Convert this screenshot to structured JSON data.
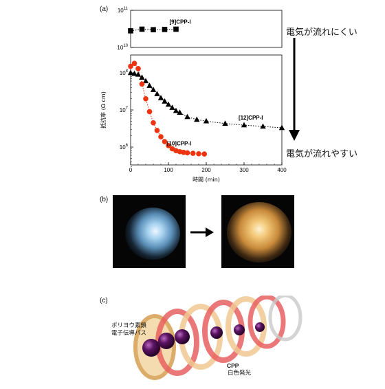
{
  "panels": {
    "a": "(a)",
    "b": "(b)",
    "c": "(c)"
  },
  "notes": {
    "top": "電気が流れにくい",
    "bottom": "電気が流れやすい"
  },
  "labels_c": {
    "path_line1": "ポリヨウ素鎖",
    "path_line2": "電子伝導パス",
    "cpp_title": "CPP",
    "cpp_sub": "白色発光"
  },
  "colors": {
    "red_series": "#ee3311",
    "black_series": "#000000"
  },
  "icons": {
    "down_arrow": "down-arrow-icon",
    "right_arrow": "right-arrow-icon"
  },
  "chart_data": {
    "type": "scatter",
    "xlabel": "時間 (min)",
    "ylabel": "抵抗率 (Ω cm)",
    "xlim": [
      0,
      400
    ],
    "ylim": [
      300000,
      150000000000
    ],
    "log_y": true,
    "broken_y_axis": true,
    "x_ticks": [
      "0",
      "100",
      "200",
      "300",
      "400"
    ],
    "y_ticks_upper": [
      "10^11",
      "10^10"
    ],
    "y_ticks_lower": [
      "10^8",
      "10^7",
      "10^6"
    ],
    "series": [
      {
        "name": "[9]CPP-I",
        "color": "#000000",
        "marker": "square",
        "x": [
          0,
          30,
          60,
          90,
          120
        ],
        "y": [
          28000000000,
          31000000000,
          30000000000,
          30500000000,
          31000000000
        ]
      },
      {
        "name": "[12]CPP-I",
        "color": "#000000",
        "marker": "triangle",
        "x": [
          0,
          10,
          20,
          30,
          40,
          50,
          60,
          70,
          80,
          90,
          100,
          110,
          120,
          130,
          150,
          175,
          200,
          250,
          300,
          350,
          400
        ],
        "y": [
          100000000,
          95000000,
          90000000,
          75000000,
          60000000,
          45000000,
          35000000,
          27000000,
          21000000,
          17000000,
          14000000,
          11500000,
          9500000,
          8500000,
          6500000,
          5500000,
          5000000,
          4300000,
          3900000,
          3600000,
          3300000
        ]
      },
      {
        "name": "[10]CPP-I",
        "color": "#ee3311",
        "marker": "circle",
        "x": [
          0,
          10,
          20,
          30,
          40,
          50,
          60,
          70,
          80,
          90,
          100,
          110,
          120,
          130,
          140,
          150,
          165,
          180,
          195
        ],
        "y": [
          150000000,
          180000000,
          130000000,
          50000000,
          20000000,
          9000000,
          4500000,
          2800000,
          1900000,
          1400000,
          1100000,
          900000,
          800000,
          750000,
          720000,
          700000,
          680000,
          660000,
          650000
        ]
      }
    ]
  }
}
